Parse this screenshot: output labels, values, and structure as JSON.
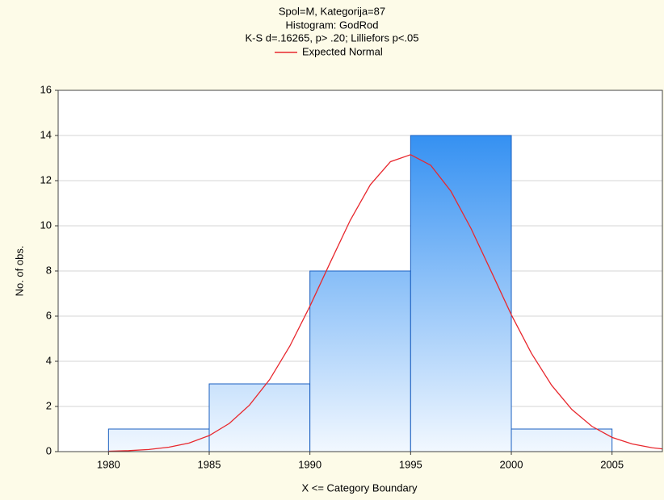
{
  "chart_data": {
    "type": "histogram",
    "title": "Spol=M, Kategorija=87",
    "subtitle": "Histogram: GodRod",
    "annotation": "K-S d=.16265, p> .20; Lilliefors p<.05",
    "x_label": "X <= Category Boundary",
    "y_label": "No. of obs.",
    "bins": [
      1980,
      1985,
      1990,
      1995,
      2000,
      2005
    ],
    "values": [
      1,
      3,
      8,
      14,
      1
    ],
    "color": "#1a82f0",
    "xlim": [
      1977.5,
      2007.5
    ],
    "xticks": [
      1980,
      1985,
      1990,
      1995,
      2000,
      2005
    ],
    "ylim": [
      0,
      16
    ],
    "yticks": [
      0,
      2,
      4,
      6,
      8,
      10,
      12,
      14,
      16
    ],
    "grid": true,
    "series": [
      {
        "name": "Expected Normal",
        "color": "#e8282e",
        "x": [
          1980,
          1981,
          1982,
          1983,
          1984,
          1985,
          1986,
          1987,
          1988,
          1989,
          1990,
          1991,
          1992,
          1993,
          1994,
          1995,
          1996,
          1997,
          1998,
          1999,
          2000,
          2001,
          2002,
          2003,
          2004,
          2005,
          2006,
          2007,
          2007.5
        ],
        "values": [
          0.018,
          0.042,
          0.093,
          0.195,
          0.38,
          0.71,
          1.25,
          2.06,
          3.19,
          4.67,
          6.44,
          8.36,
          10.24,
          11.82,
          12.84,
          13.15,
          12.68,
          11.53,
          9.88,
          7.98,
          6.06,
          4.35,
          2.94,
          1.87,
          1.12,
          0.63,
          0.34,
          0.17,
          0.12
        ]
      }
    ]
  }
}
